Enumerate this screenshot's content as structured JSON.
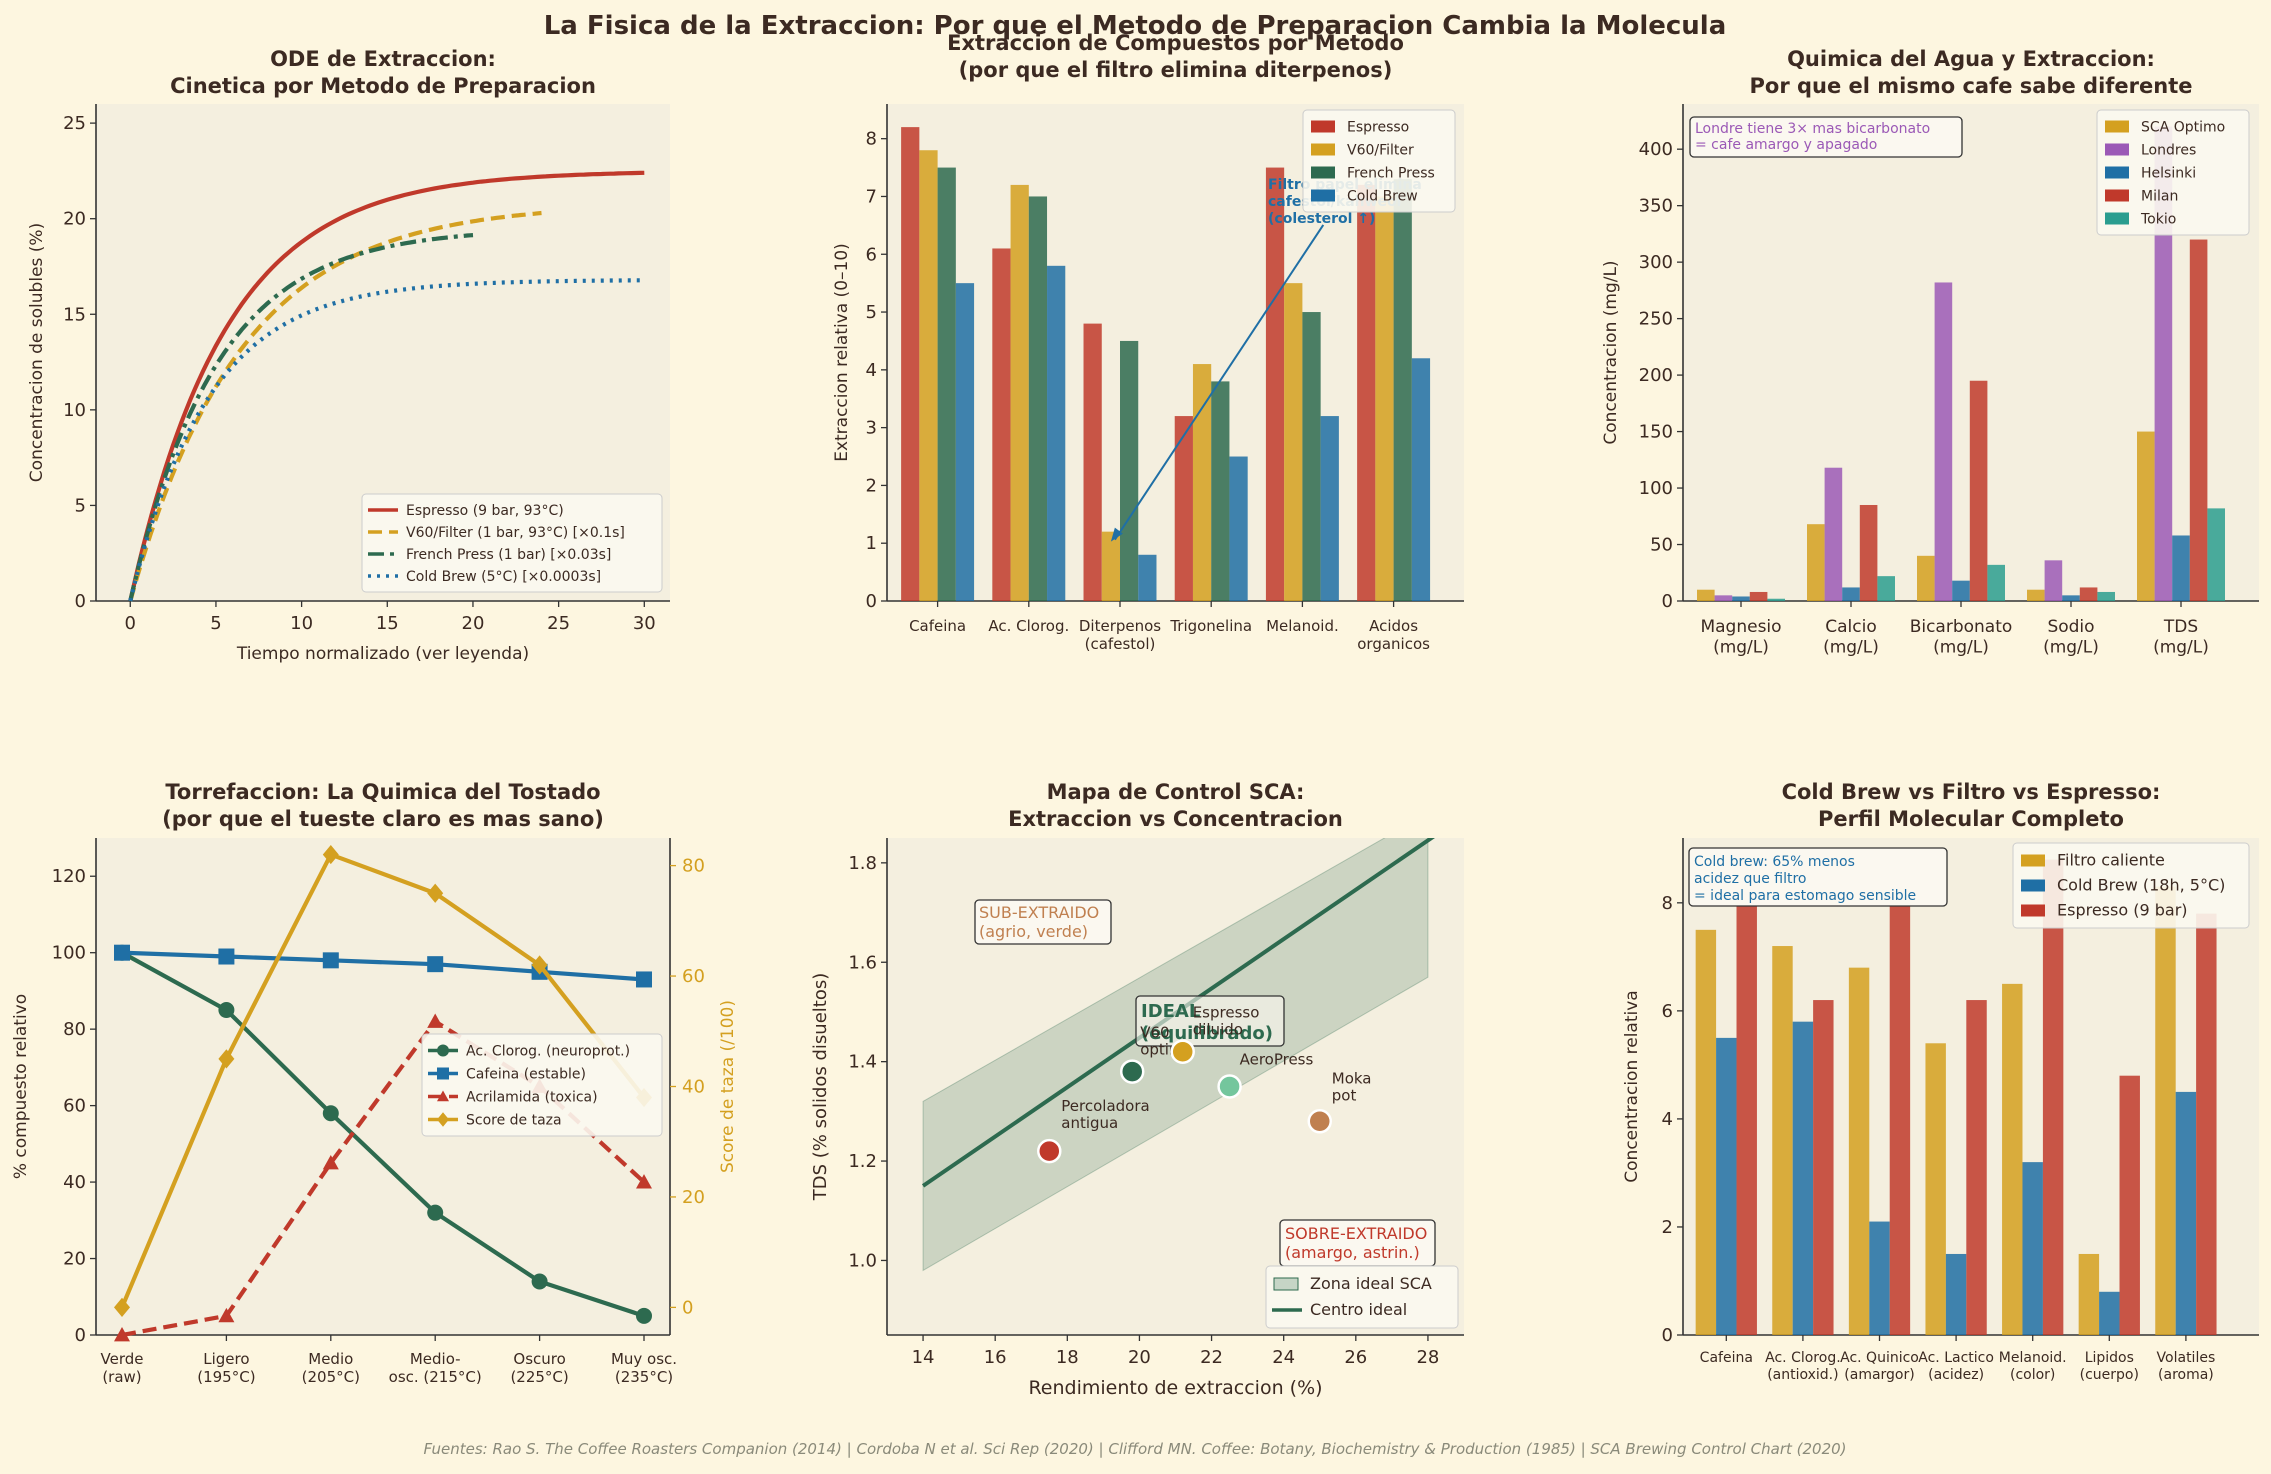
{
  "figure": {
    "suptitle": "La Fisica de la Extraccion: Por que el Metodo de Preparacion Cambia la Molecula",
    "footer": "Fuentes: Rao S. The Coffee Roasters Companion (2014) | Cordoba N et al. Sci Rep (2020) | Clifford MN. Coffee: Botany, Biochemistry & Production (1985) | SCA Brewing Control Chart (2020)"
  },
  "colors": {
    "bg": "#fdf6e0",
    "panel": "#f4efdf",
    "red": "#c0392b",
    "gold": "#d4a020",
    "green": "#2d6a4f",
    "blue": "#1f6fa5",
    "purple": "#9b59b6",
    "teal": "#2a9d8f",
    "dark": "#3c2a22",
    "brown": "#c08050"
  },
  "chart_data": [
    {
      "id": "ode",
      "type": "line",
      "title": "ODE de Extraccion:\nCinetica por Metodo de Preparacion",
      "xlabel": "Tiempo normalizado (ver leyenda)",
      "ylabel": "Concentracion de solubles (%)",
      "xlim": [
        -2,
        31.5
      ],
      "ylim": [
        0,
        26
      ],
      "xticks": [
        0,
        5,
        10,
        15,
        20,
        25,
        30
      ],
      "yticks": [
        0,
        5,
        10,
        15,
        20,
        25
      ],
      "series": [
        {
          "name": "Espresso (9 bar, 93°C)",
          "color": "#c0392b",
          "dash": "solid",
          "cmax": 22.5,
          "k": 0.18,
          "tmax": 30
        },
        {
          "name": "V60/Filter (1 bar, 93°C) [×0.1s]",
          "color": "#d4a020",
          "dash": "dashed",
          "cmax": 20.8,
          "k": 0.155,
          "tmax": 24
        },
        {
          "name": "French Press (1 bar) [×0.03s]",
          "color": "#2d6a4f",
          "dash": "dashdot",
          "cmax": 19.5,
          "k": 0.2,
          "tmax": 20
        },
        {
          "name": "Cold Brew (5°C) [×0.0003s]",
          "color": "#1f6fa5",
          "dash": "dotted",
          "cmax": 16.8,
          "k": 0.22,
          "tmax": 30
        }
      ]
    },
    {
      "id": "compounds",
      "type": "bar",
      "title": "Extraccion de Compuestos por Metodo\n(por que el filtro elimina diterpenos)",
      "ylabel": "Extraccion relativa (0–10)",
      "ylim": [
        0,
        8.6
      ],
      "yticks": [
        0,
        1,
        2,
        3,
        4,
        5,
        6,
        7,
        8
      ],
      "categories": [
        "Cafeina",
        "Ac. Clorog.",
        "Diterpenos\n(cafestol)",
        "Trigonelina",
        "Melanoid.",
        "Acidos\norganicos"
      ],
      "series": [
        {
          "name": "Espresso",
          "color": "#c0392b",
          "values": [
            8.2,
            6.1,
            4.8,
            3.2,
            7.5,
            7.2
          ]
        },
        {
          "name": "V60/Filter",
          "color": "#d4a020",
          "values": [
            7.8,
            7.2,
            1.2,
            4.1,
            5.5,
            7.0
          ]
        },
        {
          "name": "French Press",
          "color": "#2d6a4f",
          "values": [
            7.5,
            7.0,
            4.5,
            3.8,
            5.0,
            7.3
          ]
        },
        {
          "name": "Cold Brew",
          "color": "#1f6fa5",
          "values": [
            5.5,
            5.8,
            0.8,
            2.5,
            3.2,
            4.2
          ]
        }
      ],
      "annotation": {
        "text": "Filtro papel elimina\ncafestol/kahweol\n(colesterol ↑)",
        "target": [
          2.0,
          1.2
        ],
        "text_at": [
          3.9,
          7.2
        ]
      }
    },
    {
      "id": "water",
      "type": "bar",
      "title": "Quimica del Agua y Extraccion:\nPor que el mismo cafe sabe diferente",
      "ylabel": "Concentracion (mg/L)",
      "ylim": [
        0,
        440
      ],
      "yticks": [
        0,
        50,
        100,
        150,
        200,
        250,
        300,
        350,
        400
      ],
      "categories": [
        "Magnesio\n(mg/L)",
        "Calcio\n(mg/L)",
        "Bicarbonato\n(mg/L)",
        "Sodio\n(mg/L)",
        "TDS\n(mg/L)"
      ],
      "series": [
        {
          "name": "SCA Optimo",
          "color": "#d4a020",
          "values": [
            10,
            68,
            40,
            10,
            150
          ]
        },
        {
          "name": "Londres",
          "color": "#9b59b6",
          "values": [
            5,
            118,
            282,
            36,
            420
          ]
        },
        {
          "name": "Helsinki",
          "color": "#1f6fa5",
          "values": [
            4,
            12,
            18,
            5,
            58
          ]
        },
        {
          "name": "Milan",
          "color": "#c0392b",
          "values": [
            8,
            85,
            195,
            12,
            320
          ]
        },
        {
          "name": "Tokio",
          "color": "#2a9d8f",
          "values": [
            2,
            22,
            32,
            8,
            82
          ]
        }
      ],
      "annotation": {
        "text": "Londre tiene 3× mas bicarbonato\n= cafe amargo y apagado"
      }
    },
    {
      "id": "roast",
      "type": "line",
      "title": "Torrefaccion: La Quimica del Tostado\n(por que el tueste claro es mas sano)",
      "ylabel": "% compuesto relativo",
      "ylabel2": "Score de taza (/100)",
      "ylim": [
        0,
        130
      ],
      "ylim2": [
        -5,
        85
      ],
      "yticks": [
        0,
        20,
        40,
        60,
        80,
        100,
        120
      ],
      "yticks2": [
        0,
        20,
        40,
        60,
        80
      ],
      "categories": [
        "Verde\n(raw)",
        "Ligero\n(195°C)",
        "Medio\n(205°C)",
        "Medio-\nosc. (215°C)",
        "Oscuro\n(225°C)",
        "Muy osc.\n(235°C)"
      ],
      "series": [
        {
          "name": "Ac. Clorog. (neuroprot.)",
          "color": "#2d6a4f",
          "marker": "circle",
          "axis": "left",
          "dash": "solid",
          "values": [
            100,
            85,
            58,
            32,
            14,
            5
          ]
        },
        {
          "name": "Cafeina (estable)",
          "color": "#1f6fa5",
          "marker": "square",
          "axis": "left",
          "dash": "solid",
          "values": [
            100,
            99,
            98,
            97,
            95,
            93
          ]
        },
        {
          "name": "Acrilamida (toxica)",
          "color": "#c0392b",
          "marker": "triangle",
          "axis": "left",
          "dash": "dashed",
          "values": [
            0,
            5,
            45,
            82,
            65,
            40
          ]
        },
        {
          "name": "Score de taza",
          "color": "#d4a020",
          "marker": "diamond",
          "axis": "right",
          "dash": "solid",
          "values": [
            0,
            45,
            82,
            75,
            62,
            38
          ]
        }
      ]
    },
    {
      "id": "sca",
      "type": "scatter",
      "title": "Mapa de Control SCA:\nExtraccion vs Concentracion",
      "xlabel": "Rendimiento de extraccion (%)",
      "ylabel": "TDS (% solidos disueltos)",
      "xlim": [
        13,
        29
      ],
      "ylim": [
        0.85,
        1.85
      ],
      "xticks": [
        14,
        16,
        18,
        20,
        22,
        24,
        26,
        28
      ],
      "yticks": [
        1.0,
        1.2,
        1.4,
        1.6,
        1.8
      ],
      "center_line": {
        "x": [
          14,
          28.5
        ],
        "y": [
          1.15,
          1.87
        ]
      },
      "ideal_zone": {
        "x": [
          14,
          28
        ],
        "lower": [
          0.98,
          1.57
        ],
        "upper": [
          1.32,
          1.9
        ]
      },
      "points": [
        {
          "label": "Percoladora\nantigua",
          "x": 17.5,
          "y": 1.22,
          "color": "#c0392b"
        },
        {
          "label": "V60\noptimo",
          "x": 19.8,
          "y": 1.38,
          "color": "#2d6a4f"
        },
        {
          "label": "Espresso\ndiluido",
          "x": 21.2,
          "y": 1.42,
          "color": "#d4a020"
        },
        {
          "label": "AeroPress",
          "x": 22.5,
          "y": 1.35,
          "color": "#74c69d"
        },
        {
          "label": "Moka\npot",
          "x": 25.0,
          "y": 1.28,
          "color": "#c08050"
        }
      ],
      "labels": {
        "under": "SUB-EXTRAIDO\n(agrio, verde)",
        "ideal": "IDEAL\n(equilibrado)",
        "over": "SOBRE-EXTRAIDO\n(amargo, astrin.)"
      },
      "legend": [
        "Zona ideal SCA",
        "Centro ideal"
      ]
    },
    {
      "id": "profile",
      "type": "bar",
      "title": "Cold Brew vs Filtro vs Espresso:\nPerfil Molecular Completo",
      "ylabel": "Concentracion relativa",
      "ylim": [
        0,
        9.2
      ],
      "yticks": [
        0,
        2,
        4,
        6,
        8
      ],
      "categories": [
        "Cafeina",
        "Ac. Clorog.\n(antioxid.)",
        "Ac. Quinico\n(amargor)",
        "Ac. Lactico\n(acidez)",
        "Melanoid.\n(color)",
        "Lipidos\n(cuerpo)",
        "Volatiles\n(aroma)"
      ],
      "series": [
        {
          "name": "Filtro caliente",
          "color": "#d4a020",
          "values": [
            7.5,
            7.2,
            6.8,
            5.4,
            6.5,
            1.5,
            8.3
          ]
        },
        {
          "name": "Cold Brew (18h, 5°C)",
          "color": "#1f6fa5",
          "values": [
            5.5,
            5.8,
            2.1,
            1.5,
            3.2,
            0.8,
            4.5
          ]
        },
        {
          "name": "Espresso (9 bar)",
          "color": "#c0392b",
          "values": [
            8.4,
            6.2,
            8.5,
            6.2,
            8.8,
            4.8,
            7.8
          ]
        }
      ],
      "annotation": {
        "text": "Cold brew: 65% menos\nacidez que filtro\n= ideal para estomago sensible"
      }
    }
  ]
}
